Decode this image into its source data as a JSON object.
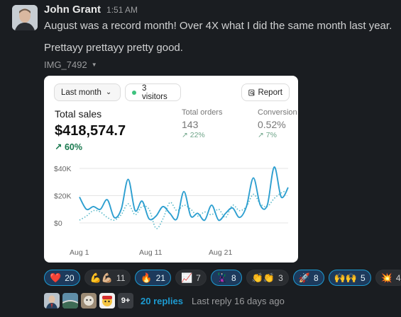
{
  "message": {
    "author": "John Grant",
    "time": "1:51 AM",
    "line1": "August was a record month! Over 4X what I did the same month last year.",
    "line2": "Prettayy prettayy pretty good.",
    "attachment_name": "IMG_7492"
  },
  "card": {
    "period_label": "Last month",
    "visitors_label": "3 visitors",
    "report_label": "Report",
    "total_sales": {
      "label": "Total sales",
      "value": "$418,574.7",
      "change": "60%"
    },
    "total_orders": {
      "label": "Total orders",
      "value": "143",
      "change": "22%"
    },
    "conversion": {
      "label": "Conversion",
      "value": "0.52%",
      "change": "7%"
    }
  },
  "chart_data": {
    "type": "line",
    "y_tick_labels": [
      "$40K",
      "$20K",
      "$0"
    ],
    "x_tick_labels": [
      "Aug 1",
      "Aug 11",
      "Aug 21"
    ],
    "ylim": [
      0,
      40
    ],
    "grid": true,
    "legend": "none",
    "series": [
      {
        "style": "solid",
        "color": "#2d9fd0",
        "x": [
          1,
          2,
          3,
          4,
          5,
          6,
          7,
          8,
          9,
          10,
          11,
          12,
          13,
          14,
          15,
          16,
          17,
          18,
          19,
          20,
          21,
          22,
          23,
          24,
          25,
          26,
          27,
          28,
          29,
          30,
          31
        ],
        "values": [
          19,
          10,
          12,
          10,
          17,
          4,
          10,
          32,
          9,
          16,
          3,
          5,
          12,
          7,
          3,
          23,
          5,
          7,
          2,
          13,
          2,
          7,
          11,
          4,
          12,
          33,
          13,
          13,
          41,
          19,
          26
        ]
      },
      {
        "style": "dotted",
        "color": "#58b8c8",
        "x": [
          1,
          2,
          3,
          4,
          5,
          6,
          7,
          8,
          9,
          10,
          11,
          12,
          13,
          14,
          15,
          16,
          17,
          18,
          19,
          20,
          21,
          22,
          23,
          24,
          25,
          26,
          27,
          28,
          29,
          30,
          31
        ],
        "values": [
          2,
          5,
          9,
          8,
          4,
          2,
          6,
          14,
          6,
          12,
          10,
          -4,
          3,
          15,
          9,
          13,
          10,
          5,
          8,
          6,
          10,
          4,
          13,
          9,
          12,
          21,
          14,
          12,
          18,
          22,
          24
        ]
      }
    ]
  },
  "reactions": [
    {
      "emoji": "❤️",
      "count": "20",
      "active": true
    },
    {
      "emoji": "💪💪🏼",
      "count": "11",
      "active": false
    },
    {
      "emoji": "🔥",
      "count": "21",
      "active": true
    },
    {
      "emoji": "📈",
      "count": "7",
      "active": false
    },
    {
      "emoji": "🦹",
      "count": "8",
      "active": true
    },
    {
      "emoji": "👏👏",
      "count": "3",
      "active": false
    },
    {
      "emoji": "🚀",
      "count": "8",
      "active": true
    },
    {
      "emoji": "🙌🙌",
      "count": "5",
      "active": true
    },
    {
      "emoji": "💥",
      "count": "4",
      "active": false
    }
  ],
  "thread": {
    "more_count": "9+",
    "replies_label": "20 replies",
    "last_reply": "Last reply 16 days ago"
  },
  "colors": {
    "background": "#1a1d21",
    "link": "#1d9bd1",
    "positive": "#18794e",
    "chart_line": "#2d9fd0"
  }
}
